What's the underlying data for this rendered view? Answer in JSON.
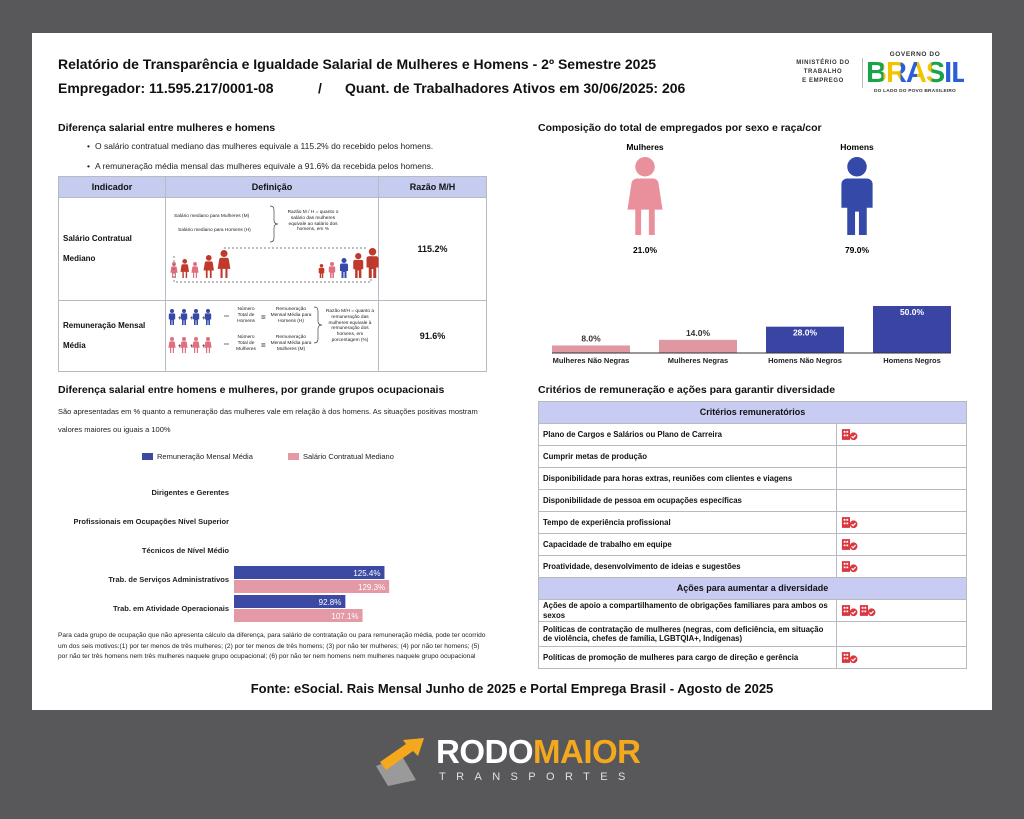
{
  "header": {
    "title": "Relatório de Transparência e Igualdade Salarial de Mulheres e Homens - 2º Semestre 2025",
    "employer": "Empregador: 11.595.217/0001-08",
    "separator": "/",
    "workers": "Quant. de Trabalhadores Ativos em 30/06/2025: 206"
  },
  "logos": {
    "ministry": [
      "MINISTÉRIO DO",
      "TRABALHO",
      "E EMPREGO"
    ],
    "gov_top": "GOVERNO DO",
    "gov_name": "BRASIL",
    "gov_slogan": "DO LADO DO POVO BRASILEIRO"
  },
  "salary_gap": {
    "title": "Diferença salarial entre mulheres e homens",
    "bullets": [
      "O salário contratual mediano das mulheres equivale a 115.2% do recebido pelos homens.",
      "A remuneração média mensal das mulheres equivale a 91.6% da recebida pelos homens."
    ],
    "table": {
      "columns": [
        "Indicador",
        "Definição",
        "Razão M/H"
      ],
      "rows": [
        {
          "indicator": "Salário Contratual Mediano",
          "definition": {
            "labels": [
              "Salário mediano para Mulheres (M)",
              "Salário mediano para Homens (H)"
            ],
            "note": "Razão M / H = quanto o salário das mulheres equivale ao salário dos homens, em %"
          },
          "ratio": "115.2%"
        },
        {
          "indicator": "Remuneração Mensal Média",
          "definition": {
            "labels": [
              "Número Total de Homens",
              "Remuneração Mensal Média para Homens (H)",
              "Número Total de Mulheres",
              "Remuneração Mensal Média para Mulheres (M)"
            ],
            "note": "Razão M/H = quanto a remuneração das mulheres equivale à remuneração dos homens, em porcentagem (%)"
          },
          "ratio": "91.6%"
        }
      ]
    }
  },
  "composition": {
    "title": "Composição do total de empregados por sexo e raça/cor",
    "groups": [
      {
        "label": "Mulheres",
        "share": "21.0%",
        "color": "#ea8f9c"
      },
      {
        "label": "Homens",
        "share": "79.0%",
        "color": "#3449a8"
      }
    ]
  },
  "chart_data": [
    {
      "type": "bar",
      "categories": [
        "Mulheres Não Negras",
        "Mulheres Negras",
        "Homens Não Negros",
        "Homens Negros"
      ],
      "values": [
        8,
        14,
        28,
        50
      ],
      "value_labels": [
        "8.0%",
        "14.0%",
        "28.0%",
        "50.0%"
      ],
      "colors": [
        "#df97a2",
        "#df97a2",
        "#3a45a3",
        "#3a45a3"
      ],
      "ylim": [
        0,
        50
      ]
    },
    {
      "type": "hbar",
      "title": "Diferença salarial entre homens e mulheres, por grande grupos ocupacionais",
      "subtitle": "São apresentadas em % quanto a remuneração das mulheres vale em relação à dos homens. As situações positivas mostram valores maiores ou iguais a 100%",
      "note": "Para cada grupo de ocupação que não apresenta cálculo da diferença, para salário de contratação ou para remuneração média, pode ter ocorrido um dos seis motivos:(1) por ter menos de três mulheres; (2) por ter menos de três homens; (3) por não ter mulheres; (4) por não ter homens; (5) por não ter três homens nem três mulheres naquele grupo ocupacional; (6) por não ter nem homens nem mulheres naquele grupo ocupacional",
      "categories": [
        "Dirigentes e Gerentes",
        "Profissionais em Ocupações Nível Superior",
        "Técnicos de Nível Médio",
        "Trab. de Serviços Administrativos",
        "Trab. em Atividade Operacionais"
      ],
      "series": [
        {
          "name": "Remuneração Mensal Média",
          "color": "#3d4aa3",
          "values": [
            null,
            null,
            null,
            125.4,
            92.8
          ],
          "value_labels": [
            null,
            null,
            null,
            "125.4%",
            "92.8%"
          ]
        },
        {
          "name": "Salário Contratual Mediano",
          "color": "#e39aa6",
          "values": [
            null,
            null,
            null,
            129.3,
            107.1
          ],
          "value_labels": [
            null,
            null,
            null,
            "129.3%",
            "107.1%"
          ]
        }
      ],
      "xlim": [
        0,
        130
      ]
    }
  ],
  "criteria": {
    "title": "Critérios de remuneração e ações para garantir diversidade",
    "sections": [
      {
        "heading": "Critérios remuneratórios",
        "rows": [
          {
            "text": "Plano de Cargos e Salários ou Plano de Carreira",
            "icons": 1
          },
          {
            "text": "Cumprir metas de produção",
            "icons": 0
          },
          {
            "text": "Disponibilidade para horas extras, reuniões com clientes e viagens",
            "icons": 0
          },
          {
            "text": "Disponibilidade de pessoa em ocupações específicas",
            "icons": 0
          },
          {
            "text": "Tempo de experiência profissional",
            "icons": 1
          },
          {
            "text": "Capacidade de trabalho em equipe",
            "icons": 1
          },
          {
            "text": "Proatividade, desenvolvimento de ideias e sugestões",
            "icons": 1
          }
        ]
      },
      {
        "heading": "Ações para aumentar a diversidade",
        "rows": [
          {
            "text": "Ações de apoio a compartilhamento de obrigações familiares para ambos os sexos",
            "icons": 2
          },
          {
            "text": "Políticas de contratação de mulheres (negras, com deficiência, em situação de violência, chefes de família, LGBTQIA+, Indígenas)",
            "icons": 0
          },
          {
            "text": "Políticas de promoção de mulheres para cargo de direção e gerência",
            "icons": 1
          }
        ]
      }
    ]
  },
  "source": "Fonte: eSocial. Rais Mensal Junho de 2025 e Portal Emprega Brasil - Agosto de 2025",
  "brand": {
    "name_a": "RODO",
    "name_b": "MAIOR",
    "tagline": "TRANSPORTES"
  }
}
